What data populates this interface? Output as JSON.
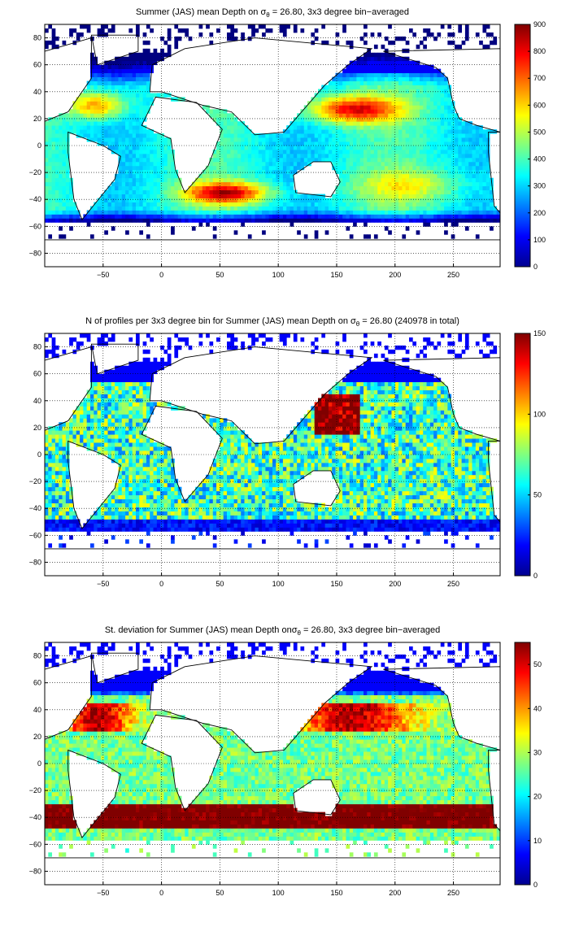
{
  "figure": {
    "panels": [
      {
        "title_text": "Summer (JAS) mean Depth on σ",
        "title_sub": "θ",
        "title_rest": " = 26.80, 3x3 degree bin−averaged",
        "colorbar_ticks": [
          "0",
          "100",
          "200",
          "300",
          "400",
          "500",
          "600",
          "700",
          "800",
          "900"
        ],
        "colorbar_range": [
          0,
          900
        ]
      },
      {
        "title_text": "N of profiles per 3x3 degree bin for Summer (JAS) mean Depth on σ",
        "title_sub": "θ",
        "title_rest": " = 26.80 (240978 in total)",
        "colorbar_ticks": [
          "0",
          "50",
          "100",
          "150"
        ],
        "colorbar_range": [
          0,
          150
        ]
      },
      {
        "title_text": "St. deviation for Summer (JAS) mean Depth onσ",
        "title_sub": "θ",
        "title_rest": " = 26.80, 3x3 degree bin−averaged",
        "colorbar_ticks": [
          "0",
          "10",
          "20",
          "30",
          "40",
          "50"
        ],
        "colorbar_range": [
          0,
          55
        ]
      }
    ],
    "x_ticks": [
      "−50",
      "0",
      "50",
      "100",
      "150",
      "200",
      "250"
    ],
    "y_ticks": [
      "80",
      "60",
      "40",
      "20",
      "0",
      "−20",
      "−40",
      "−60",
      "−80"
    ],
    "x_range": [
      -100,
      290
    ],
    "y_range": [
      -90,
      90
    ],
    "colormap": "jet",
    "grid": "dotted"
  }
}
